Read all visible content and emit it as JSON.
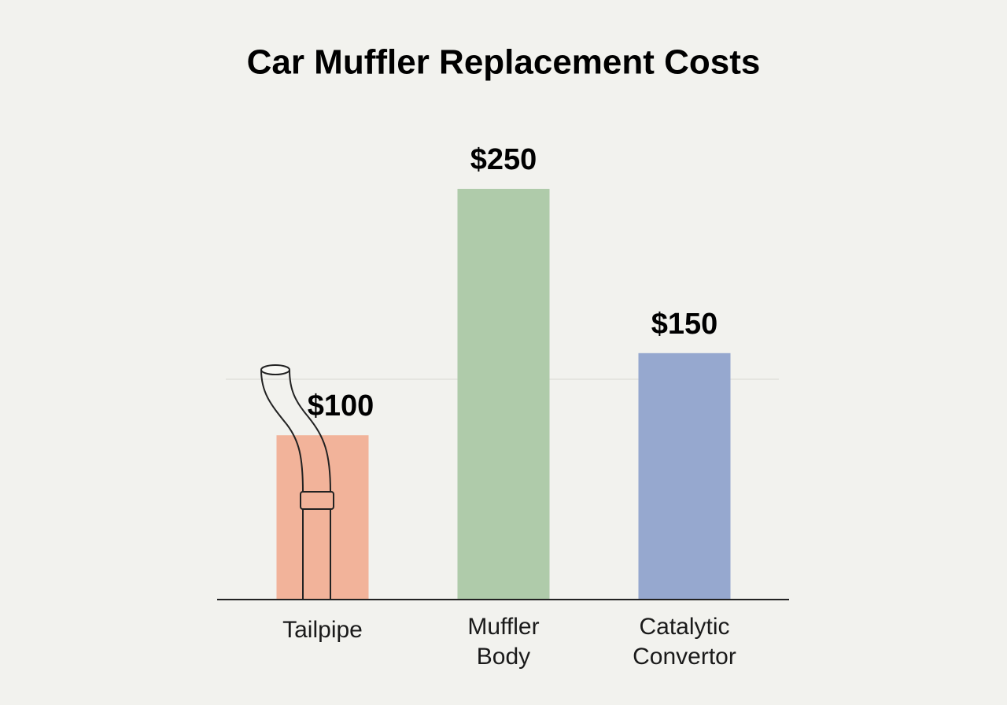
{
  "chart_data": {
    "type": "bar",
    "title": "Car Muffler Replacement Costs",
    "categories": [
      "Tailpipe",
      "Muffler Body",
      "Catalytic Convertor"
    ],
    "values": [
      100,
      250,
      150
    ],
    "value_labels": [
      "$100",
      "$250",
      "$150"
    ],
    "colors": [
      "#f2b39a",
      "#afcbaa",
      "#96a8cf"
    ]
  }
}
